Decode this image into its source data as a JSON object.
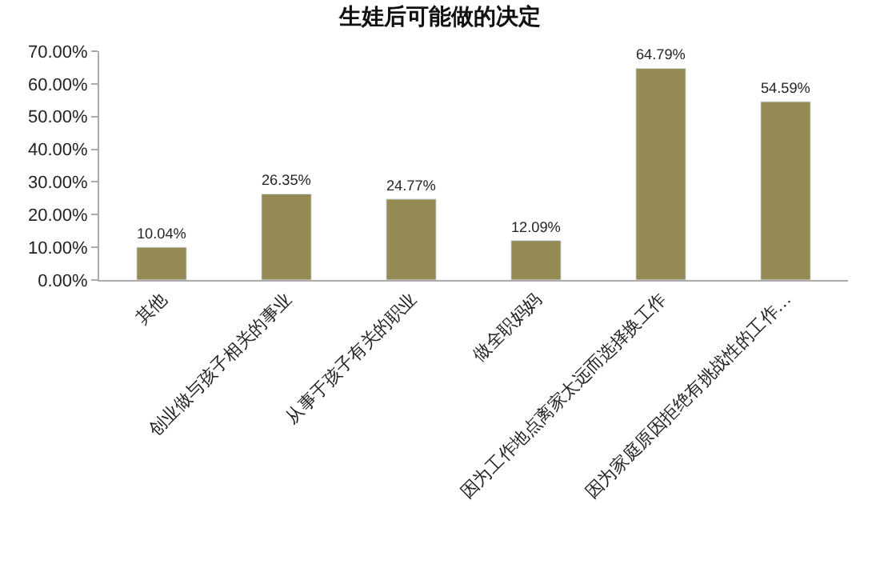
{
  "chart_data": {
    "type": "bar",
    "title": "生娃后可能做的决定",
    "categories": [
      "其他",
      "创业做与孩子相关的事业",
      "从事于孩子有关的职业",
      "做全职妈妈",
      "因为工作地点离家太远而选择换工作",
      "因为家庭原因拒绝有挑战性的工作…"
    ],
    "values": [
      10.04,
      26.35,
      24.77,
      12.09,
      64.79,
      54.59
    ],
    "value_labels": [
      "10.04%",
      "26.35%",
      "24.77%",
      "12.09%",
      "64.79%",
      "54.59%"
    ],
    "color": "#948b54",
    "ylim": [
      0,
      70
    ],
    "yticks": [
      {
        "value": 0,
        "label": "0.00%"
      },
      {
        "value": 10,
        "label": "10.00%"
      },
      {
        "value": 20,
        "label": "20.00%"
      },
      {
        "value": 30,
        "label": "30.00%"
      },
      {
        "value": 40,
        "label": "40.00%"
      },
      {
        "value": 50,
        "label": "50.00%"
      },
      {
        "value": 60,
        "label": "60.00%"
      },
      {
        "value": 70,
        "label": "70.00%"
      }
    ],
    "grid": false
  }
}
